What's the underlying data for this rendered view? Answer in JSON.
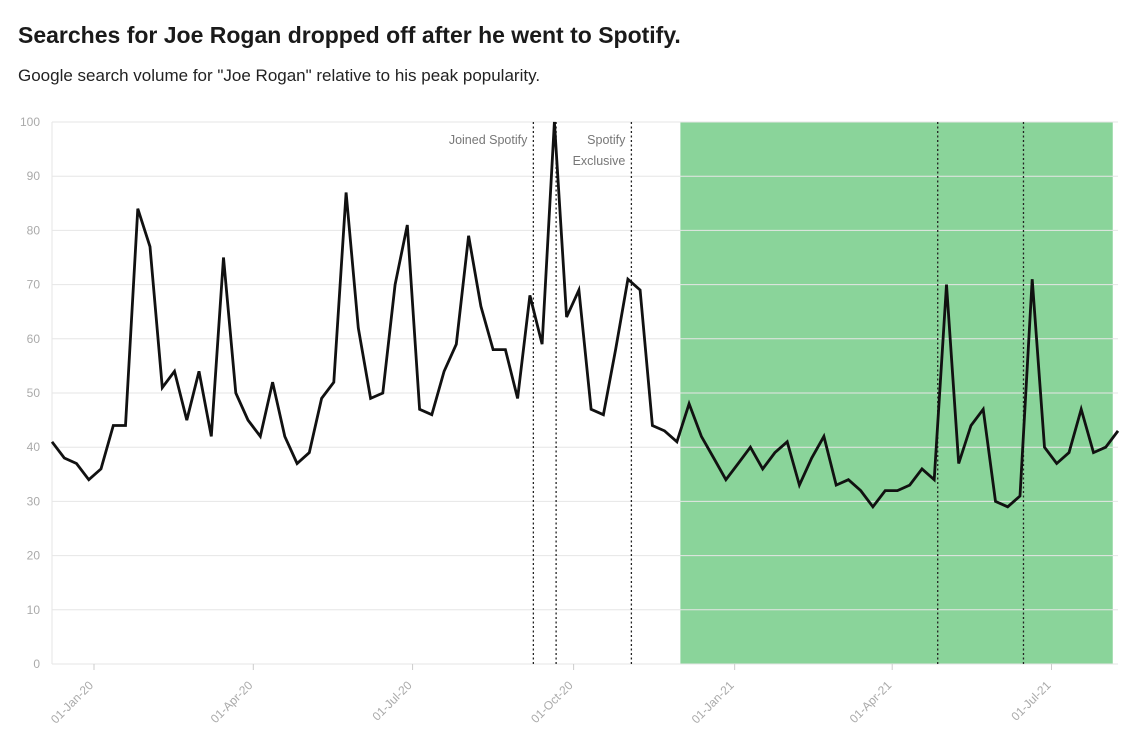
{
  "chart_data": {
    "type": "line",
    "title": "Searches for Joe Rogan dropped off after he went to Spotify.",
    "subtitle": "Google search volume for \"Joe Rogan\" relative to his peak popularity.",
    "ylim": [
      0,
      100
    ],
    "yticks": [
      0,
      10,
      20,
      30,
      40,
      50,
      60,
      70,
      80,
      90,
      100
    ],
    "x_start": "2019-12-08",
    "x_interval": "weekly",
    "xticks": [
      {
        "date": "2020-01-01",
        "label": "01-Jan-20"
      },
      {
        "date": "2020-04-01",
        "label": "01-Apr-20"
      },
      {
        "date": "2020-07-01",
        "label": "01-Jul-20"
      },
      {
        "date": "2020-10-01",
        "label": "01-Oct-20"
      },
      {
        "date": "2021-01-01",
        "label": "01-Jan-21"
      },
      {
        "date": "2021-04-01",
        "label": "01-Apr-21"
      },
      {
        "date": "2021-07-01",
        "label": "01-Jul-21"
      }
    ],
    "values": [
      41,
      38,
      37,
      34,
      36,
      44,
      44,
      84,
      77,
      51,
      54,
      45,
      54,
      42,
      75,
      50,
      45,
      42,
      52,
      42,
      37,
      39,
      49,
      52,
      87,
      62,
      49,
      50,
      70,
      81,
      47,
      46,
      54,
      59,
      79,
      66,
      58,
      58,
      49,
      68,
      59,
      100,
      64,
      69,
      47,
      46,
      58,
      71,
      69,
      44,
      43,
      41,
      48,
      42,
      38,
      34,
      37,
      40,
      36,
      39,
      41,
      33,
      38,
      42,
      33,
      34,
      32,
      29,
      32,
      32,
      33,
      36,
      34,
      70,
      37,
      44,
      47,
      30,
      29,
      31,
      71,
      40,
      37,
      39,
      47,
      39,
      40,
      43
    ],
    "shaded_region": {
      "start": "2020-12-01",
      "end": "2021-08-05",
      "color": "#8ad49a"
    },
    "reference_lines": [
      {
        "date": "2020-09-08",
        "label": "Joined Spotify"
      },
      {
        "date": "2020-09-21",
        "label": ""
      },
      {
        "date": "2020-11-03",
        "label": "Spotify Exclusive"
      },
      {
        "date": "2021-04-27",
        "label": ""
      },
      {
        "date": "2021-06-15",
        "label": ""
      }
    ],
    "line_color": "#111111",
    "grid": true
  }
}
